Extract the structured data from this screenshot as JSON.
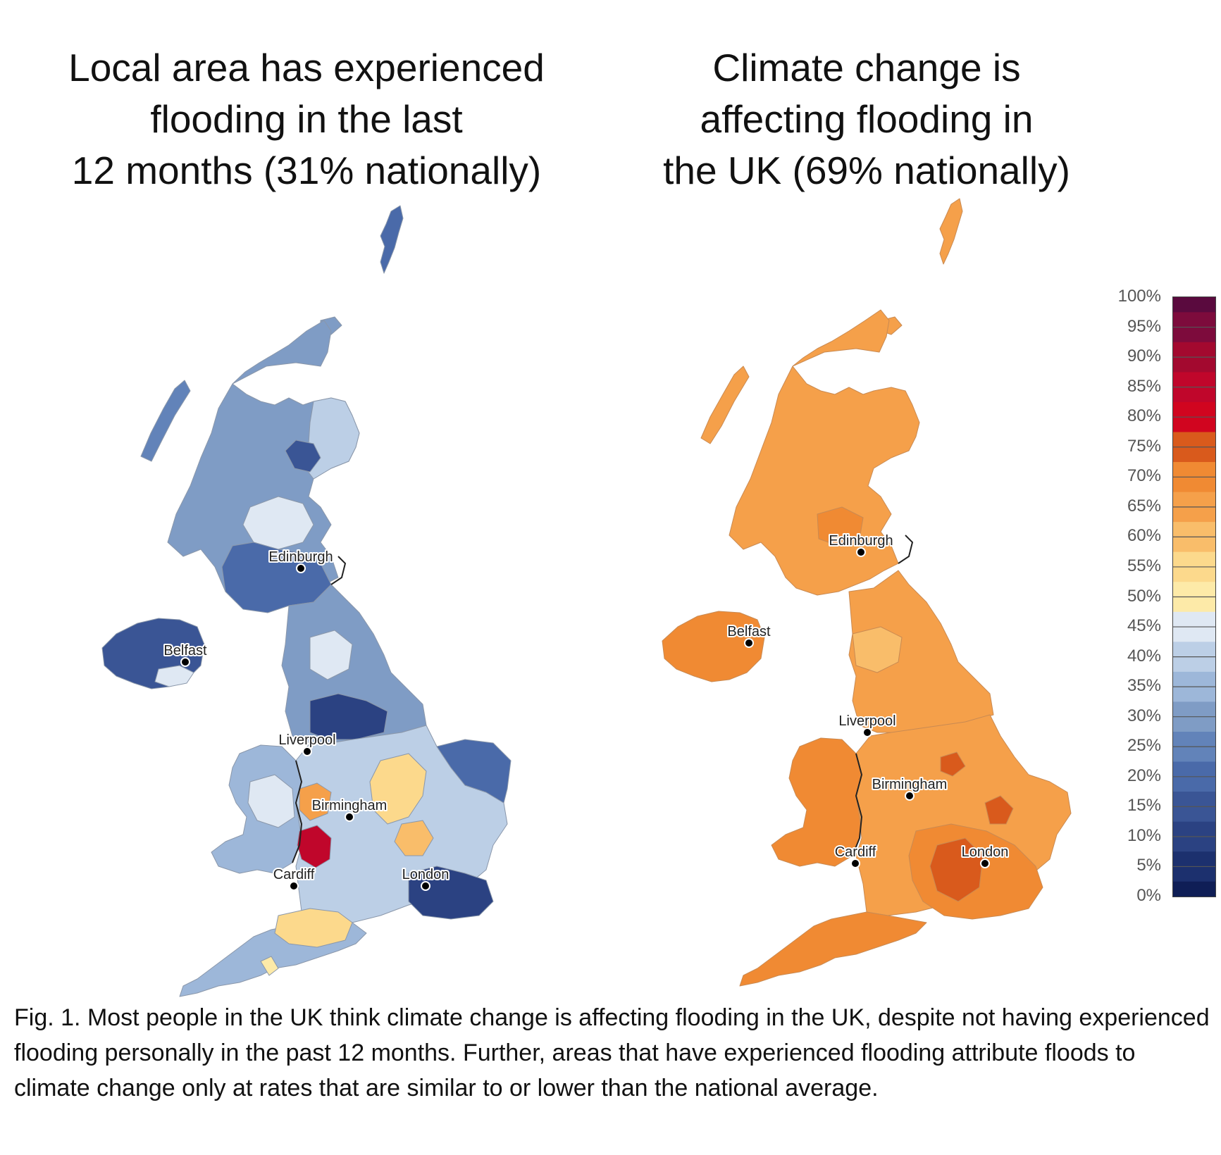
{
  "titles": {
    "left": [
      "Local area has experienced",
      "flooding in the last",
      "12 months (31% nationally)"
    ],
    "right": [
      "Climate change is",
      "affecting flooding in",
      "the UK (69% nationally)"
    ]
  },
  "maps": {
    "left": {
      "cities": [
        "Edinburgh",
        "Belfast",
        "Liverpool",
        "Birmingham",
        "Cardiff",
        "London"
      ],
      "base_color": "#7f9cc5"
    },
    "right": {
      "cities": [
        "Edinburgh",
        "Belfast",
        "Liverpool",
        "Birmingham",
        "Cardiff",
        "London"
      ],
      "base_color": "#f4a451"
    }
  },
  "legend": {
    "labels": [
      "100%",
      "95%",
      "90%",
      "85%",
      "80%",
      "75%",
      "70%",
      "65%",
      "60%",
      "55%",
      "50%",
      "45%",
      "40%",
      "35%",
      "30%",
      "25%",
      "20%",
      "15%",
      "10%",
      "5%",
      "0%"
    ],
    "colors_top_to_bottom": [
      "#5a0a3e",
      "#7d0b3c",
      "#a3092f",
      "#c0062b",
      "#d1051f",
      "#d95a1c",
      "#f08a33",
      "#f5a04a",
      "#f9bd6a",
      "#fcd98c",
      "#fdeaa8",
      "#dfe8f3",
      "#bccfe6",
      "#9db7d9",
      "#7f9cc5",
      "#6283b9",
      "#4a6aa9",
      "#3a5595",
      "#2b4282",
      "#1c306e",
      "#0f1e56"
    ]
  },
  "caption": {
    "label": "Fig. 1",
    "text": ". Most people in the UK think climate change is affecting flooding in the UK, despite not having experienced flooding personally in the past 12 months. Further, areas that have experienced flooding attribute floods to climate change only at rates that are similar to or lower than the national average."
  }
}
